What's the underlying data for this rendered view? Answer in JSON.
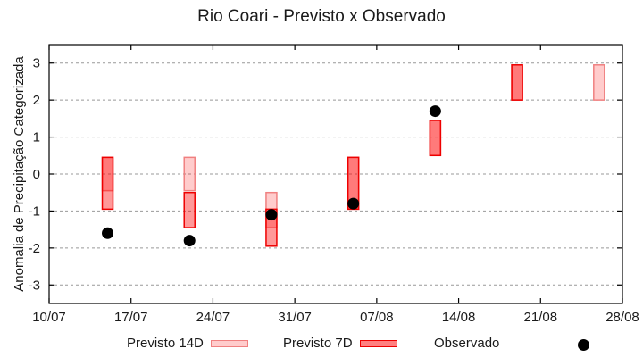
{
  "chart_data": {
    "type": "bar",
    "subtype": "floating-range-bars-with-scatter",
    "title": "Rio Coari - Previsto x Observado",
    "xlabel": "",
    "ylabel": "Anomalia de Precipitação Categorizada",
    "xlim": [
      "10/07",
      "28/08"
    ],
    "ylim": [
      -3.5,
      3.5
    ],
    "x_ticks": [
      "10/07",
      "17/07",
      "24/07",
      "31/07",
      "07/08",
      "14/08",
      "21/08",
      "28/08"
    ],
    "y_ticks": [
      3,
      2,
      1,
      0,
      -1,
      -2,
      -3
    ],
    "grid": {
      "y": true,
      "x": false,
      "style": "dotted"
    },
    "legend_position": "bottom",
    "categories": [
      "15/07",
      "22/07",
      "29/07",
      "05/08",
      "12/08",
      "19/08",
      "26/08"
    ],
    "series": [
      {
        "name": "Previsto 14D",
        "kind": "range",
        "fill": "#ffcccc",
        "stroke": "#f08080",
        "ranges": [
          [
            -0.45,
            0.45
          ],
          [
            -0.45,
            0.45
          ],
          [
            -1.45,
            -0.5
          ],
          [
            -0.95,
            0.45
          ],
          [
            0.5,
            1.45
          ],
          [
            2.0,
            2.95
          ],
          [
            2.0,
            2.95
          ]
        ]
      },
      {
        "name": "Previsto 7D",
        "kind": "range",
        "fill": "#ff9999",
        "stroke": "#ee0000",
        "ranges": [
          [
            -0.95,
            0.45
          ],
          [
            -1.45,
            -0.5
          ],
          [
            -1.95,
            -0.95
          ],
          [
            -0.95,
            0.45
          ],
          [
            0.5,
            1.45
          ],
          [
            2.0,
            2.95
          ],
          null
        ]
      },
      {
        "name": "Observado",
        "kind": "point",
        "color": "#000000",
        "values": [
          -1.6,
          -1.8,
          -1.1,
          -0.8,
          1.7,
          null,
          null
        ]
      }
    ]
  },
  "legend": {
    "items": [
      {
        "label": "Previsto 14D"
      },
      {
        "label": "Previsto 7D"
      },
      {
        "label": "Observado"
      }
    ]
  }
}
